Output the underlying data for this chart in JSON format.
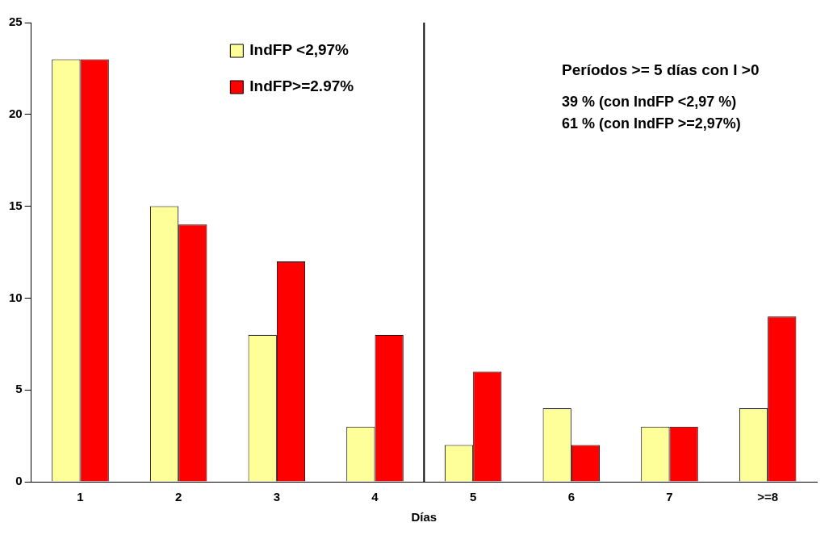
{
  "chart_data": {
    "type": "bar",
    "xlabel": "Días",
    "categories": [
      "1",
      "2",
      "3",
      "4",
      "5",
      "6",
      "7",
      ">=8"
    ],
    "series": [
      {
        "name": "IndFP <2,97%",
        "color": "#ffff99",
        "values": [
          23,
          15,
          8,
          3,
          2,
          4,
          3,
          4
        ]
      },
      {
        "name": "IndFP>=2.97%",
        "color": "#ff0000",
        "values": [
          23,
          14,
          12,
          8,
          6,
          2,
          3,
          9
        ]
      }
    ],
    "ylim": [
      0,
      25
    ],
    "yticks": [
      0,
      5,
      10,
      15,
      20,
      25
    ],
    "grid": false,
    "legend": "top",
    "annotations": [
      "Períodos >= 5 días con I >0",
      "39 % (con IndFP <2,97 %)",
      "61 % (con IndFP >=2,97%)"
    ]
  }
}
